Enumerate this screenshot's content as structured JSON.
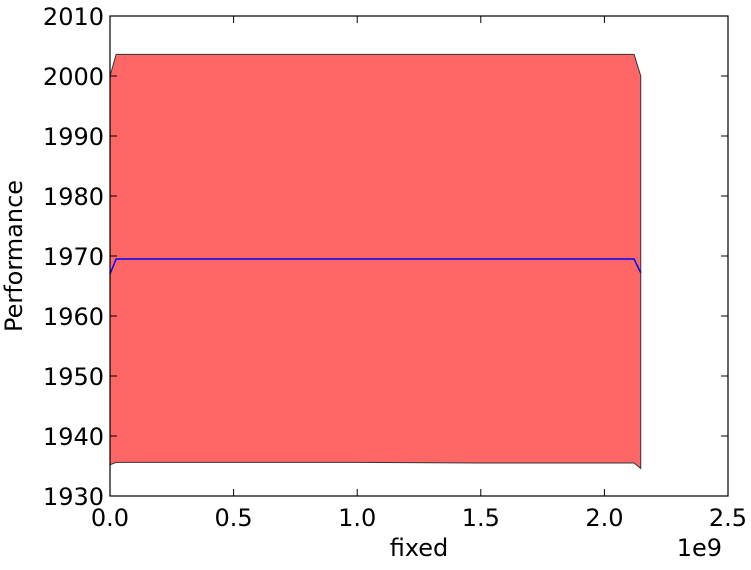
{
  "chart_data": {
    "type": "area",
    "title": "",
    "xlabel": "fixed",
    "ylabel": "Performance",
    "x_offset_text": "1e9",
    "xlim": [
      0.0,
      2.5
    ],
    "ylim": [
      1930,
      2010
    ],
    "x_ticks": [
      0.0,
      0.5,
      1.0,
      1.5,
      2.0,
      2.5
    ],
    "x_tick_labels": [
      "0.0",
      "0.5",
      "1.0",
      "1.5",
      "2.0",
      "2.5"
    ],
    "y_ticks": [
      1930,
      1940,
      1950,
      1960,
      1970,
      1980,
      1990,
      2000,
      2010
    ],
    "y_tick_labels": [
      "1930",
      "1940",
      "1950",
      "1960",
      "1970",
      "1980",
      "1990",
      "2000",
      "2010"
    ],
    "grid": false,
    "legend": null,
    "band": {
      "x": [
        0.0,
        0.025,
        0.05,
        0.5,
        1.0,
        1.5,
        2.0,
        2.12,
        2.147
      ],
      "upper": [
        2000.0,
        2003.6,
        2003.6,
        2003.6,
        2003.6,
        2003.6,
        2003.6,
        2003.6,
        2000.0
      ],
      "lower": [
        1935.2,
        1935.6,
        1935.6,
        1935.6,
        1935.6,
        1935.5,
        1935.5,
        1935.5,
        1934.6
      ],
      "color": "#ff6666"
    },
    "series": [
      {
        "x": [
          0.0,
          0.025,
          0.5,
          1.0,
          1.5,
          2.0,
          2.12,
          2.147
        ],
        "values": [
          1967.0,
          1969.5,
          1969.5,
          1969.5,
          1969.5,
          1969.5,
          1969.5,
          1967.2
        ],
        "color": "#0000ff"
      }
    ]
  }
}
